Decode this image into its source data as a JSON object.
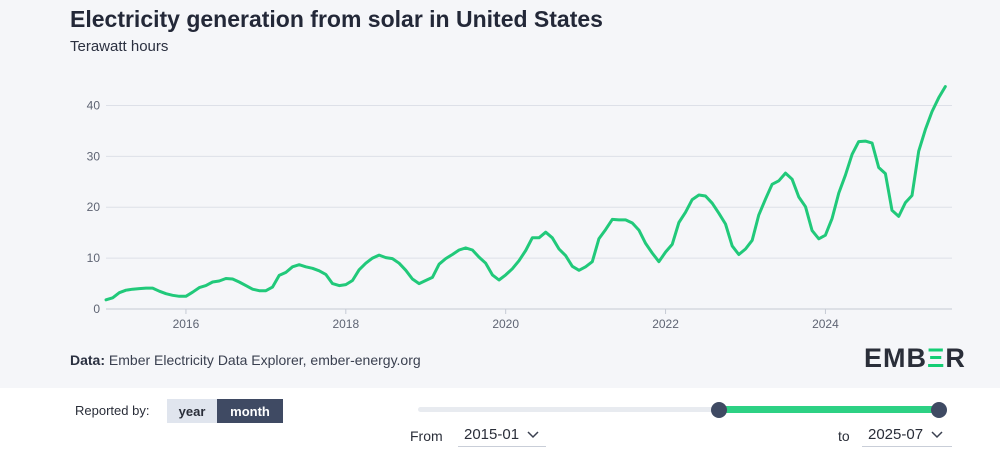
{
  "chart_data": {
    "type": "line",
    "title": "Electricity generation from solar in United States",
    "subtitle": "Terawatt hours",
    "xlabel": "",
    "ylabel": "Terawatt hours",
    "xlim": [
      2015.0,
      2025.5833
    ],
    "ylim": [
      0,
      45
    ],
    "grid": true,
    "y_ticks": [
      0,
      10,
      20,
      30,
      40
    ],
    "x_ticks": [
      2016,
      2018,
      2020,
      2022,
      2024
    ],
    "series": [
      {
        "name": "Solar",
        "color": "#21c97a",
        "x_start": "2015-01",
        "interval": "month",
        "values": [
          1.8,
          2.2,
          3.2,
          3.7,
          3.9,
          4.0,
          4.1,
          4.1,
          3.5,
          3.0,
          2.7,
          2.5,
          2.5,
          3.3,
          4.2,
          4.6,
          5.3,
          5.5,
          6.0,
          5.9,
          5.3,
          4.6,
          3.9,
          3.6,
          3.6,
          4.3,
          6.6,
          7.2,
          8.3,
          8.7,
          8.3,
          8.0,
          7.5,
          6.8,
          5.0,
          4.6,
          4.8,
          5.6,
          7.7,
          9.0,
          10.0,
          10.6,
          10.1,
          9.9,
          9.0,
          7.6,
          5.9,
          5.0,
          5.6,
          6.2,
          8.8,
          9.9,
          10.7,
          11.6,
          12.0,
          11.6,
          10.2,
          9.0,
          6.7,
          5.7,
          6.7,
          7.9,
          9.5,
          11.5,
          14.0,
          14.0,
          15.1,
          14.0,
          11.8,
          10.5,
          8.4,
          7.6,
          8.3,
          9.3,
          13.8,
          15.6,
          17.6,
          17.5,
          17.5,
          16.9,
          15.5,
          12.9,
          11.0,
          9.3,
          11.2,
          12.7,
          17.0,
          19.0,
          21.5,
          22.4,
          22.2,
          20.8,
          18.8,
          16.7,
          12.4,
          10.7,
          11.8,
          13.5,
          18.5,
          21.6,
          24.5,
          25.2,
          26.7,
          25.5,
          22.0,
          20.1,
          15.4,
          13.8,
          14.5,
          17.8,
          22.8,
          26.3,
          30.4,
          32.9,
          33.0,
          32.6,
          27.8,
          26.6,
          19.4,
          18.2,
          20.9,
          22.3,
          31.0,
          35.3,
          38.8,
          41.5,
          43.7
        ]
      }
    ]
  },
  "source": {
    "label": "Data:",
    "text": "Ember Electricity Data Explorer, ember-energy.org"
  },
  "logo": {
    "text": "EMBER"
  },
  "controls": {
    "reported_by_label": "Reported by:",
    "toggle": {
      "year": "year",
      "month": "month",
      "selected": "month"
    },
    "from_label": "From",
    "from_value": "2015-01",
    "to_label": "to",
    "to_value": "2025-07",
    "slider_start_fraction": 0.577,
    "slider_end_fraction": 1.0
  },
  "colors": {
    "line": "#21c97a",
    "accent": "#13ce74",
    "dark": "#3f4a63",
    "gridline": "#dde0e8",
    "background": "#f5f6f9"
  }
}
